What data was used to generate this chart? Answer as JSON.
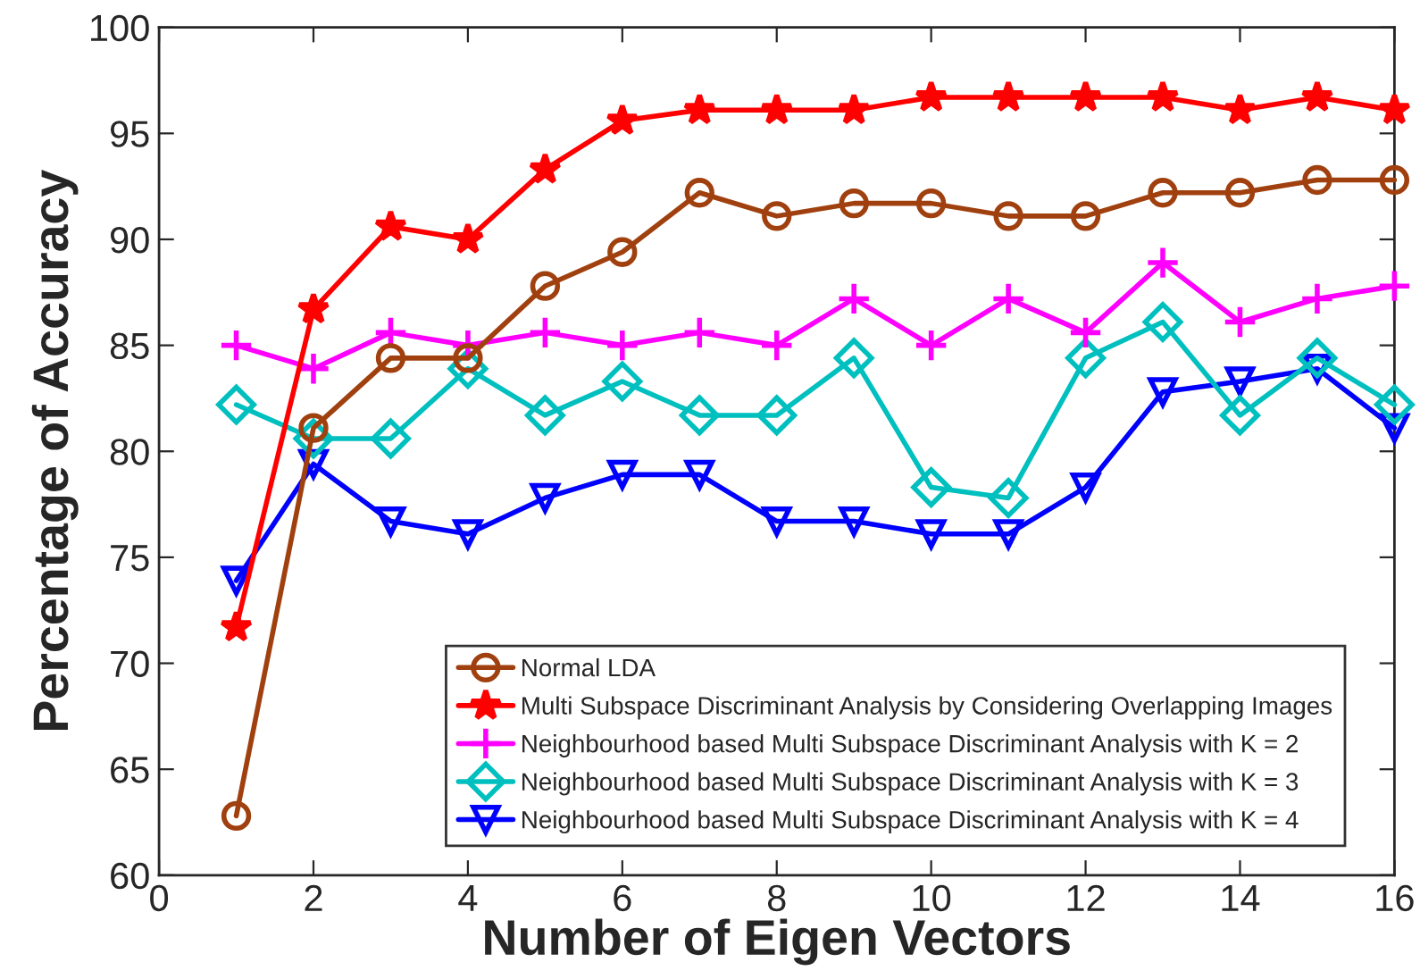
{
  "chart_data": {
    "type": "line",
    "xlabel": "Number of Eigen Vectors",
    "ylabel": "Percentage of Accuracy",
    "x": [
      1,
      2,
      3,
      4,
      5,
      6,
      7,
      8,
      9,
      10,
      11,
      12,
      13,
      14,
      15,
      16
    ],
    "series": [
      {
        "name": "Normal LDA",
        "color": "#a0400f",
        "marker": "circle",
        "values": [
          62.8,
          81.1,
          84.4,
          84.4,
          87.8,
          89.4,
          92.2,
          91.1,
          91.7,
          91.7,
          91.1,
          91.1,
          92.2,
          92.2,
          92.8,
          92.8
        ]
      },
      {
        "name": "Multi Subspace Discriminant Analysis by Considering Overlapping Images",
        "color": "#ff0000",
        "marker": "star",
        "values": [
          71.7,
          86.7,
          90.6,
          90.0,
          93.3,
          95.6,
          96.1,
          96.1,
          96.1,
          96.7,
          96.7,
          96.7,
          96.7,
          96.1,
          96.7,
          96.1
        ]
      },
      {
        "name": "Neighbourhood based Multi Subspace Discriminant Analysis with K = 2",
        "color": "#ff00ff",
        "marker": "cross",
        "values": [
          85.0,
          83.9,
          85.6,
          85.0,
          85.6,
          85.0,
          85.6,
          85.0,
          87.2,
          85.0,
          87.2,
          85.6,
          88.9,
          86.1,
          87.2,
          87.8
        ]
      },
      {
        "name": "Neighbourhood based Multi Subspace Discriminant Analysis with K = 3",
        "color": "#00bfbf",
        "marker": "diamond",
        "values": [
          82.2,
          80.6,
          80.6,
          83.9,
          81.7,
          83.3,
          81.7,
          81.7,
          84.4,
          78.3,
          77.8,
          84.4,
          86.1,
          81.7,
          84.4,
          82.2
        ]
      },
      {
        "name": "Neighbourhood based Multi Subspace Discriminant Analysis with K = 4",
        "color": "#0000ff",
        "marker": "triangle",
        "values": [
          73.9,
          79.4,
          76.7,
          76.1,
          77.8,
          78.9,
          78.9,
          76.7,
          76.7,
          76.1,
          76.1,
          78.3,
          82.8,
          83.3,
          83.9,
          81.1
        ]
      }
    ],
    "xlim": [
      0,
      16
    ],
    "xticks": [
      0,
      2,
      4,
      6,
      8,
      10,
      12,
      14,
      16
    ],
    "ylim": [
      60,
      100
    ],
    "yticks": [
      60,
      65,
      70,
      75,
      80,
      85,
      90,
      95,
      100
    ],
    "grid": false,
    "legend": "bottom right",
    "line_style": "solid"
  }
}
